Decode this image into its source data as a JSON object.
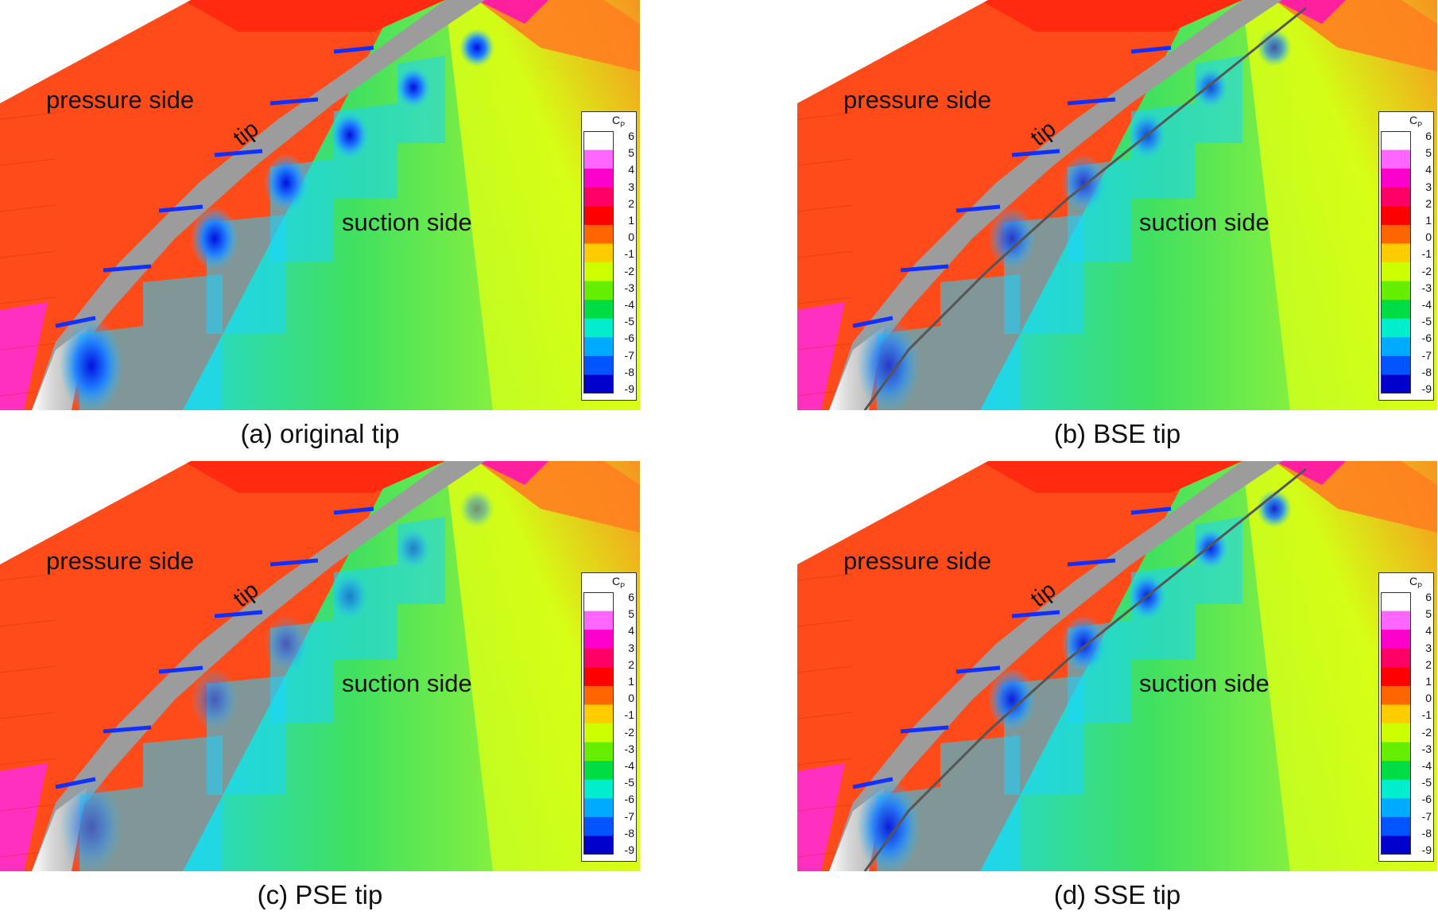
{
  "figure": {
    "panels": [
      {
        "caption": "(a) original tip",
        "pressure_label": "pressure side",
        "suction_label": "suction side",
        "tip_label": "tip",
        "variant": "original"
      },
      {
        "caption": "(b) BSE tip",
        "pressure_label": "pressure side",
        "suction_label": "suction side",
        "tip_label": "tip",
        "variant": "bse"
      },
      {
        "caption": "(c) PSE tip",
        "pressure_label": "pressure side",
        "suction_label": "suction side",
        "tip_label": "tip",
        "variant": "pse"
      },
      {
        "caption": "(d) SSE tip",
        "pressure_label": "pressure side",
        "suction_label": "suction side",
        "tip_label": "tip",
        "variant": "sse"
      }
    ],
    "colorbar": {
      "title": "C",
      "title_sub": "P",
      "ticks": [
        "6",
        "5",
        "4",
        "3",
        "2",
        "1",
        "0",
        "-1",
        "-2",
        "-3",
        "-4",
        "-5",
        "-6",
        "-7",
        "-8",
        "-9"
      ],
      "colors": [
        "#ffffff",
        "#ff66ff",
        "#ff00cc",
        "#ff0066",
        "#ff0000",
        "#ff6600",
        "#ffcc00",
        "#ccff00",
        "#66ee00",
        "#00dd44",
        "#00eecc",
        "#00aaff",
        "#0055ff",
        "#0000cc"
      ]
    },
    "field_colors": {
      "pressure": "#ff4a1a",
      "pressure_dark": "#ff2a10",
      "magenta": "#ff30c0",
      "tip_metal": "#9c9c9c",
      "tip_light": "#c8c8c8",
      "suction_near": "#1a40ff",
      "suction_mid": "#1ad6ff",
      "suction_far": "#40e060",
      "far_field": "#c8ff20",
      "top_right": "#ff8020"
    }
  }
}
